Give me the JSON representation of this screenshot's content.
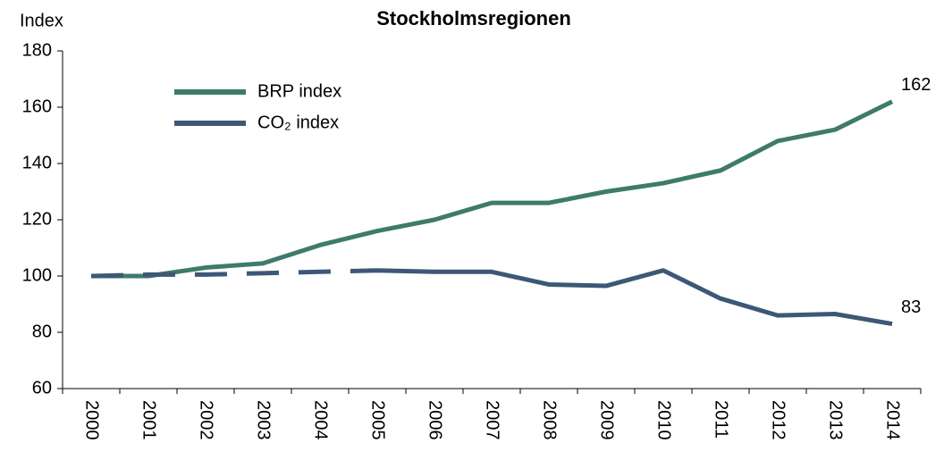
{
  "chart_data": {
    "type": "line",
    "title": "Stockholmsregionen",
    "y_label": "Index",
    "categories": [
      "2000",
      "2001",
      "2002",
      "2003",
      "2004",
      "2005",
      "2006",
      "2007",
      "2008",
      "2009",
      "2010",
      "2011",
      "2012",
      "2013",
      "2014"
    ],
    "series": [
      {
        "name": "BRP index",
        "color": "#3e7b6b",
        "values": [
          100,
          100,
          103,
          104.5,
          111,
          116,
          120,
          126,
          126,
          130,
          133,
          137.5,
          148,
          152,
          162
        ]
      },
      {
        "name": "CO₂ index",
        "color": "#3d5877",
        "dashed_through": "2005",
        "values": [
          100,
          100.5,
          100.5,
          101,
          101.5,
          102,
          101.5,
          101.5,
          97,
          96.5,
          102,
          92,
          86,
          86.5,
          83
        ]
      }
    ],
    "end_labels": true,
    "ylim": [
      60,
      180
    ],
    "yticks": [
      60,
      80,
      100,
      120,
      140,
      160,
      180
    ],
    "legend": "upper left"
  }
}
